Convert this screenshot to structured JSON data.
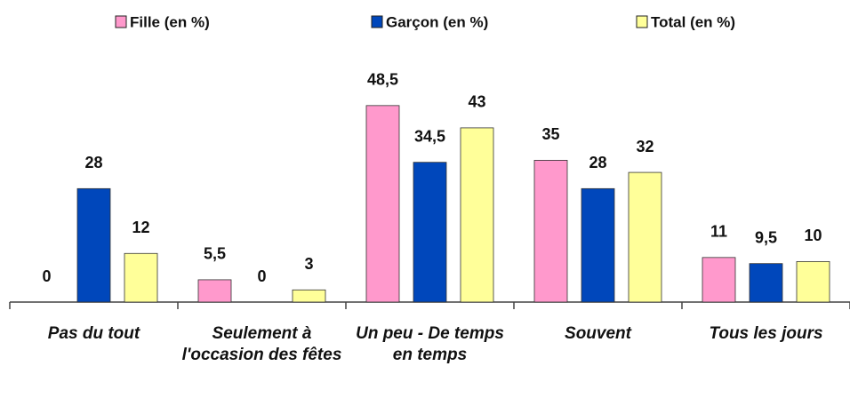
{
  "chart_data": {
    "type": "bar",
    "categories": [
      "Pas du tout",
      "Seulement à l'occasion des fêtes",
      "Un peu - De temps en temps",
      "Souvent",
      "Tous les jours"
    ],
    "series": [
      {
        "name": "Fille (en %)",
        "color": "#ff99cc",
        "values": [
          0,
          5.5,
          48.5,
          35,
          11
        ],
        "value_labels": [
          "0",
          "5,5",
          "48,5",
          "35",
          "11"
        ]
      },
      {
        "name": "Garçon (en %)",
        "color": "#0047bb",
        "values": [
          28,
          0,
          34.5,
          28,
          9.5
        ],
        "value_labels": [
          "28",
          "0",
          "34,5",
          "28",
          "9,5"
        ]
      },
      {
        "name": "Total (en %)",
        "color": "#ffff99",
        "values": [
          12,
          3,
          43,
          32,
          10
        ]
      }
    ],
    "ylim": [
      0,
      50
    ]
  }
}
